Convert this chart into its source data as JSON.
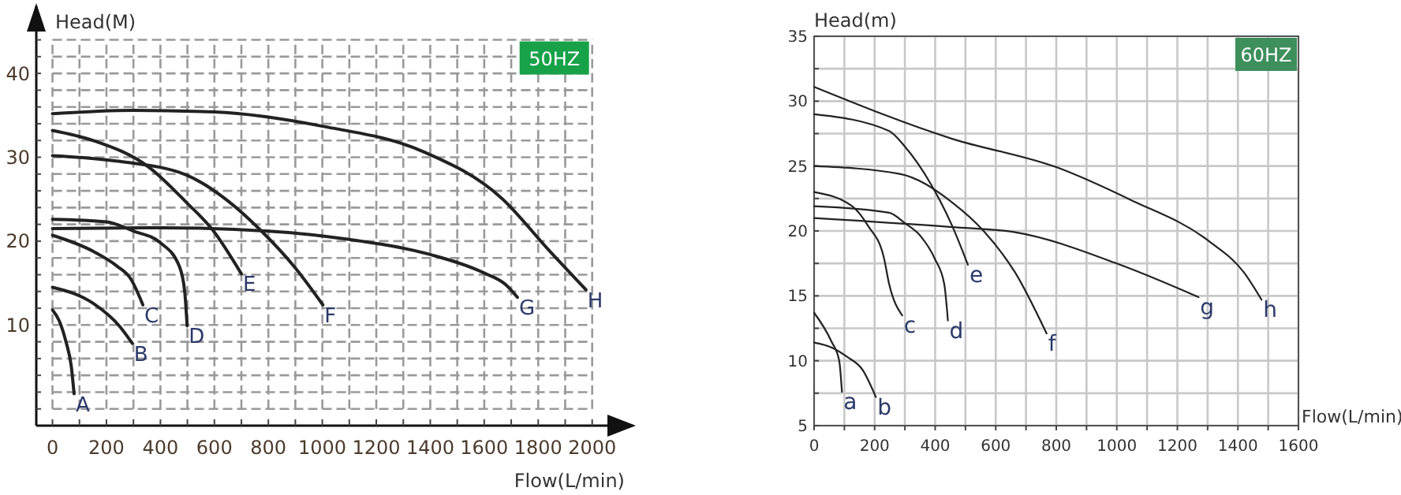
{
  "chart_data": [
    {
      "type": "line",
      "xlabel": "Flow(L/min)",
      "ylabel": "Head(M)",
      "annotations": [
        "50HZ"
      ],
      "grid": true,
      "xlim": [
        -60,
        2150
      ],
      "ylim": [
        -2,
        48
      ],
      "xticks": [
        0,
        {
          "value": 100,
          "label": null
        },
        200,
        {
          "value": 300,
          "label": null
        },
        400,
        {
          "value": 500,
          "label": null
        },
        600,
        {
          "value": 700,
          "label": null
        },
        800,
        {
          "value": 900,
          "label": null
        },
        1000,
        {
          "value": 1100,
          "label": null
        },
        1200,
        {
          "value": 1300,
          "label": null
        },
        1400,
        {
          "value": 1500,
          "label": null
        },
        1600,
        {
          "value": 1700,
          "label": null
        },
        1800,
        {
          "value": 1900,
          "label": null
        },
        2000
      ],
      "yticks": [
        {
          "value": 0,
          "label": null
        },
        {
          "value": 2,
          "label": null
        },
        {
          "value": 4,
          "label": null
        },
        {
          "value": 6,
          "label": null
        },
        {
          "value": 8,
          "label": null
        },
        10,
        {
          "value": 12,
          "label": null
        },
        {
          "value": 14,
          "label": null
        },
        {
          "value": 16,
          "label": null
        },
        {
          "value": 18,
          "label": null
        },
        20,
        {
          "value": 22,
          "label": null
        },
        {
          "value": 24,
          "label": null
        },
        {
          "value": 26,
          "label": null
        },
        {
          "value": 28,
          "label": null
        },
        30,
        {
          "value": 32,
          "label": null
        },
        {
          "value": 34,
          "label": null
        },
        {
          "value": 36,
          "label": null
        },
        {
          "value": 38,
          "label": null
        },
        40,
        {
          "value": 42,
          "label": null
        },
        {
          "value": 44,
          "label": null
        }
      ],
      "series": [
        {
          "name": "A",
          "color": "#222222",
          "x": [
            0,
            25,
            50,
            70,
            80
          ],
          "values": [
            11.8,
            10.5,
            8,
            5,
            1.8
          ]
        },
        {
          "name": "B",
          "color": "#222222",
          "x": [
            0,
            150,
            250,
            296
          ],
          "values": [
            14.5,
            12.6,
            9.8,
            7.8
          ]
        },
        {
          "name": "C",
          "color": "#222222",
          "x": [
            0,
            144,
            240,
            290,
            335
          ],
          "values": [
            20.7,
            18.9,
            17,
            15.5,
            12.4
          ]
        },
        {
          "name": "D",
          "color": "#222222",
          "x": [
            0,
            200,
            300,
            400,
            470,
            490,
            499
          ],
          "values": [
            22.6,
            22.3,
            21.2,
            19.8,
            17,
            14,
            9.9
          ]
        },
        {
          "name": "E",
          "color": "#222222",
          "x": [
            0,
            150,
            358,
            500,
            592,
            700
          ],
          "values": [
            33.2,
            32,
            28.8,
            24.5,
            21.4,
            16.1
          ]
        },
        {
          "name": "F",
          "color": "#222222",
          "x": [
            0,
            250,
            495,
            650,
            768,
            900,
            1002
          ],
          "values": [
            30.2,
            29.5,
            27.9,
            24.8,
            21.4,
            16.8,
            12.4
          ]
        },
        {
          "name": "G",
          "color": "#222222",
          "x": [
            0,
            400,
            800,
            1100,
            1400,
            1600,
            1680,
            1723
          ],
          "values": [
            21.5,
            21.6,
            21.2,
            20.2,
            18.4,
            16.2,
            14.8,
            13.3
          ]
        },
        {
          "name": "H",
          "color": "#222222",
          "x": [
            0,
            300,
            600,
            1000,
            1372,
            1665,
            1840,
            1977
          ],
          "values": [
            35.2,
            35.6,
            35.4,
            33.7,
            30.7,
            25.1,
            18.9,
            14.2
          ]
        }
      ]
    },
    {
      "type": "line",
      "xlabel": "Flow(L/min)",
      "ylabel": "Head(m)",
      "annotations": [
        "60HZ"
      ],
      "grid": true,
      "xlim": [
        0,
        1600
      ],
      "ylim": [
        5,
        35
      ],
      "xticks": [
        0,
        {
          "value": 100,
          "label": null
        },
        200,
        {
          "value": 300,
          "label": null
        },
        400,
        {
          "value": 500,
          "label": null
        },
        600,
        {
          "value": 700,
          "label": null
        },
        800,
        {
          "value": 900,
          "label": null
        },
        1000,
        {
          "value": 1100,
          "label": null
        },
        1200,
        {
          "value": 1300,
          "label": null
        },
        1400,
        {
          "value": 1500,
          "label": null
        },
        1600
      ],
      "yticks": [
        5,
        {
          "value": 7.5,
          "label": null
        },
        10,
        {
          "value": 12.5,
          "label": null
        },
        15,
        {
          "value": 17.5,
          "label": null
        },
        20,
        {
          "value": 22.5,
          "label": null
        },
        25,
        {
          "value": 27.5,
          "label": null
        },
        30,
        {
          "value": 32.5,
          "label": null
        },
        35
      ],
      "series": [
        {
          "name": "a",
          "color": "#222222",
          "x": [
            0,
            57,
            83,
            92
          ],
          "values": [
            13.7,
            11.5,
            10,
            7.6
          ]
        },
        {
          "name": "b",
          "color": "#222222",
          "x": [
            0,
            60,
            109,
            160,
            204
          ],
          "values": [
            11.4,
            11,
            10.3,
            9.3,
            7.2
          ]
        },
        {
          "name": "c",
          "color": "#222222",
          "x": [
            0,
            126,
            178,
            230,
            248,
            291
          ],
          "values": [
            23,
            21.9,
            20.4,
            18,
            15.9,
            13.5
          ]
        },
        {
          "name": "d",
          "color": "#222222",
          "x": [
            0,
            248,
            300,
            352,
            400,
            430,
            442
          ],
          "values": [
            21.9,
            21.4,
            20.6,
            19.6,
            17.8,
            15.9,
            13.1
          ]
        },
        {
          "name": "e",
          "color": "#222222",
          "x": [
            0,
            248,
            300,
            386,
            456,
            508
          ],
          "values": [
            29,
            27.7,
            26.5,
            23.6,
            20.4,
            17.4
          ]
        },
        {
          "name": "f",
          "color": "#222222",
          "x": [
            0,
            283,
            456,
            560,
            664,
            768
          ],
          "values": [
            25,
            24.4,
            22.2,
            20,
            16.8,
            12.1
          ]
        },
        {
          "name": "g",
          "color": "#222222",
          "x": [
            0,
            456,
            664,
            1010,
            1270
          ],
          "values": [
            21,
            20.3,
            19.9,
            17.4,
            14.9
          ]
        },
        {
          "name": "h",
          "color": "#222222",
          "x": [
            0,
            456,
            802,
            1045,
            1305,
            1420,
            1478
          ],
          "values": [
            31.1,
            27.1,
            24.9,
            22.4,
            19.2,
            16.8,
            14.7
          ]
        }
      ]
    }
  ]
}
